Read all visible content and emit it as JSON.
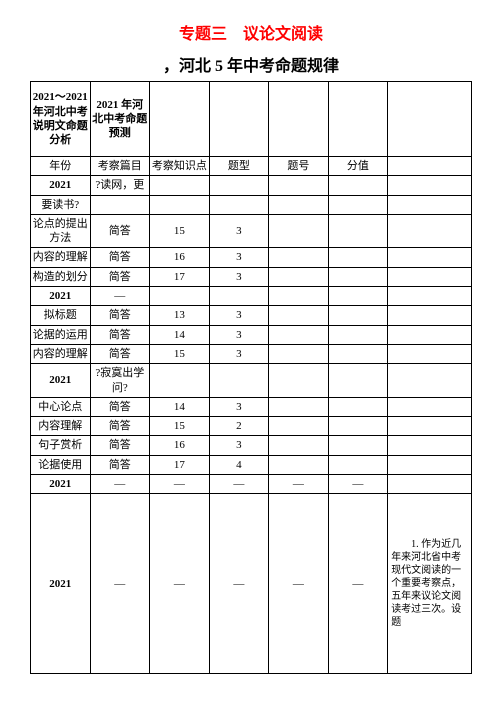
{
  "title": {
    "text": "专题三　议论文阅读",
    "color": "#ff0000",
    "fontsize": 13,
    "fontweight": "bold"
  },
  "subtitle": {
    "text": "，河北 5 年中考命题规律",
    "fontsize": 12,
    "fontweight": "bold"
  },
  "table": {
    "border_color": "#000000",
    "background_color": "#ffffff",
    "font_family": "SimSun",
    "fontsize": 11,
    "header_row": {
      "col1": "2021～2021 年河北中考说明文命题分析",
      "col2": "2021 年河北中考命题预测"
    },
    "subheader": {
      "col1": "年份",
      "col2": "考察篇目",
      "col3": "考察知识点",
      "col4": "题型",
      "col5": "题号",
      "col6": "分值"
    },
    "rows": [
      {
        "c1": "2021",
        "c2": "?读网，更",
        "c3": "",
        "c4": "",
        "c5": "",
        "c6": "",
        "bold_c1": true
      },
      {
        "c1": "要读书?",
        "c2": "",
        "c3": "",
        "c4": "",
        "c5": "",
        "c6": ""
      },
      {
        "c1": "论点的提出方法",
        "c2": "简答",
        "c3": "15",
        "c4": "3",
        "c5": "",
        "c6": ""
      },
      {
        "c1": "内容的理解",
        "c2": "简答",
        "c3": "16",
        "c4": "3",
        "c5": "",
        "c6": ""
      },
      {
        "c1": "构造的划分",
        "c2": "简答",
        "c3": "17",
        "c4": "3",
        "c5": "",
        "c6": ""
      },
      {
        "c1": "2021",
        "c2": "—",
        "c3": "",
        "c4": "",
        "c5": "",
        "c6": "",
        "bold_c1": true
      },
      {
        "c1": "拟标题",
        "c2": "简答",
        "c3": "13",
        "c4": "3",
        "c5": "",
        "c6": ""
      },
      {
        "c1": "论据的运用",
        "c2": "简答",
        "c3": "14",
        "c4": "3",
        "c5": "",
        "c6": ""
      },
      {
        "c1": "内容的理解",
        "c2": "简答",
        "c3": "15",
        "c4": "3",
        "c5": "",
        "c6": ""
      },
      {
        "c1": "2021",
        "c2": "?寂寞出学问?",
        "c3": "",
        "c4": "",
        "c5": "",
        "c6": "",
        "bold_c1": true
      },
      {
        "c1": "中心论点",
        "c2": "简答",
        "c3": "14",
        "c4": "3",
        "c5": "",
        "c6": ""
      },
      {
        "c1": "内容理解",
        "c2": "简答",
        "c3": "15",
        "c4": "2",
        "c5": "",
        "c6": ""
      },
      {
        "c1": "句子赏析",
        "c2": "简答",
        "c3": "16",
        "c4": "3",
        "c5": "",
        "c6": ""
      },
      {
        "c1": "论据使用",
        "c2": "简答",
        "c3": "17",
        "c4": "4",
        "c5": "",
        "c6": ""
      },
      {
        "c1": "2021",
        "c2": "—",
        "c3": "—",
        "c4": "—",
        "c5": "—",
        "c6": "—",
        "bold_c1": true
      }
    ],
    "last_row": {
      "c1": "2021",
      "c2": "—",
      "c3": "—",
      "c4": "—",
      "c5": "—",
      "c6": "—",
      "c7": "　　1. 作为近几年来河北省中考现代文阅读的一个重要考察点，五年来议论文阅读考过三次。设题",
      "bold_c1": true
    }
  }
}
